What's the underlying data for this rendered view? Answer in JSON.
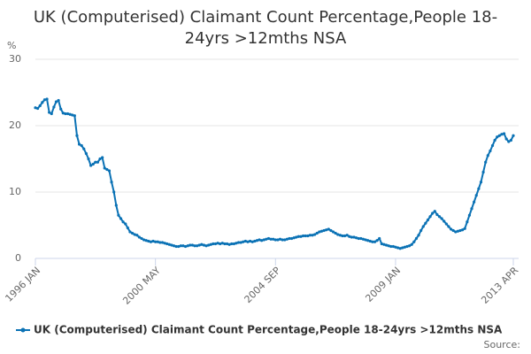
{
  "chart_data": {
    "type": "line",
    "title": "UK (Computerised) Claimant Count Percentage,People 18-24yrs >12mths NSA",
    "y_label": "%",
    "source": "Source:",
    "categories": [
      "1996 JAN",
      null,
      null,
      null,
      null,
      null,
      null,
      null,
      null,
      null,
      null,
      null,
      null,
      null,
      null,
      null,
      null,
      null,
      null,
      null,
      null,
      null,
      null,
      null,
      null,
      null,
      null,
      null,
      null,
      null,
      null,
      null,
      null,
      null,
      null,
      null,
      null,
      null,
      null,
      null,
      null,
      null,
      null,
      null,
      null,
      null,
      null,
      null,
      null,
      null,
      null,
      null,
      "2000 MAY",
      null,
      null,
      null,
      null,
      null,
      null,
      null,
      null,
      null,
      null,
      null,
      null,
      null,
      null,
      null,
      null,
      null,
      null,
      null,
      null,
      null,
      null,
      null,
      null,
      null,
      null,
      null,
      null,
      null,
      null,
      null,
      null,
      null,
      null,
      null,
      null,
      null,
      null,
      null,
      null,
      null,
      null,
      null,
      null,
      null,
      null,
      null,
      null,
      null,
      null,
      null,
      "2004 SEP",
      null,
      null,
      null,
      null,
      null,
      null,
      null,
      null,
      null,
      null,
      null,
      null,
      null,
      null,
      null,
      null,
      null,
      null,
      null,
      null,
      null,
      null,
      null,
      null,
      null,
      null,
      null,
      null,
      null,
      null,
      null,
      null,
      null,
      null,
      null,
      null,
      null,
      null,
      null,
      null,
      null,
      null,
      null,
      null,
      null,
      null,
      null,
      null,
      null,
      null,
      null,
      "2009 JAN",
      null,
      null,
      null,
      null,
      null,
      null,
      null,
      null,
      null,
      null,
      null,
      null,
      null,
      null,
      null,
      null,
      null,
      null,
      null,
      null,
      null,
      null,
      null,
      null,
      null,
      null,
      null,
      null,
      null,
      null,
      null,
      null,
      null,
      null,
      null,
      null,
      null,
      null,
      null,
      null,
      null,
      null,
      null,
      null,
      null,
      null,
      null,
      null,
      null,
      null,
      "2013 APR"
    ],
    "series": [
      {
        "name": "UK (Computerised) Claimant Count Percentage,People 18-24yrs >12mths NSA",
        "color": "#0b72b5",
        "values": [
          22.7,
          22.6,
          23.0,
          23.5,
          23.9,
          24.0,
          22.0,
          21.8,
          22.8,
          23.6,
          23.8,
          22.5,
          21.9,
          21.8,
          21.8,
          21.7,
          21.6,
          21.5,
          18.5,
          17.2,
          17.0,
          16.5,
          15.8,
          15.0,
          14.0,
          14.2,
          14.5,
          14.5,
          15.0,
          15.2,
          13.6,
          13.4,
          13.2,
          11.5,
          10.0,
          8.0,
          6.5,
          6.0,
          5.5,
          5.2,
          4.6,
          4.0,
          3.8,
          3.6,
          3.5,
          3.2,
          3.0,
          2.8,
          2.7,
          2.6,
          2.5,
          2.6,
          2.5,
          2.5,
          2.4,
          2.4,
          2.3,
          2.2,
          2.1,
          2.0,
          1.9,
          1.8,
          1.8,
          1.9,
          1.9,
          1.8,
          1.9,
          2.0,
          2.0,
          1.9,
          1.9,
          2.0,
          2.1,
          2.0,
          1.9,
          2.0,
          2.1,
          2.2,
          2.2,
          2.3,
          2.2,
          2.3,
          2.2,
          2.2,
          2.1,
          2.2,
          2.2,
          2.3,
          2.4,
          2.4,
          2.5,
          2.6,
          2.5,
          2.6,
          2.5,
          2.6,
          2.7,
          2.8,
          2.7,
          2.8,
          2.9,
          3.0,
          2.9,
          2.9,
          2.8,
          2.8,
          2.9,
          2.8,
          2.8,
          2.9,
          3.0,
          3.0,
          3.1,
          3.2,
          3.3,
          3.3,
          3.4,
          3.4,
          3.4,
          3.5,
          3.5,
          3.6,
          3.8,
          4.0,
          4.1,
          4.2,
          4.3,
          4.4,
          4.2,
          4.0,
          3.8,
          3.6,
          3.5,
          3.4,
          3.4,
          3.5,
          3.3,
          3.2,
          3.2,
          3.1,
          3.0,
          3.0,
          2.9,
          2.8,
          2.7,
          2.6,
          2.5,
          2.5,
          2.7,
          3.0,
          2.2,
          2.1,
          2.0,
          1.9,
          1.8,
          1.8,
          1.7,
          1.6,
          1.5,
          1.6,
          1.7,
          1.8,
          1.9,
          2.1,
          2.5,
          3.0,
          3.5,
          4.2,
          4.8,
          5.3,
          5.8,
          6.3,
          6.8,
          7.1,
          6.6,
          6.3,
          6.0,
          5.6,
          5.2,
          4.8,
          4.4,
          4.2,
          4.0,
          4.1,
          4.2,
          4.3,
          4.5,
          5.5,
          6.5,
          7.5,
          8.5,
          9.5,
          10.5,
          11.5,
          13.0,
          14.5,
          15.5,
          16.2,
          17.0,
          17.8,
          18.3,
          18.5,
          18.7,
          18.8,
          18.0,
          17.6,
          17.8,
          18.5
        ]
      }
    ],
    "ylim": [
      0,
      30
    ],
    "yticks": [
      0,
      10,
      20,
      30
    ],
    "grid": true
  }
}
